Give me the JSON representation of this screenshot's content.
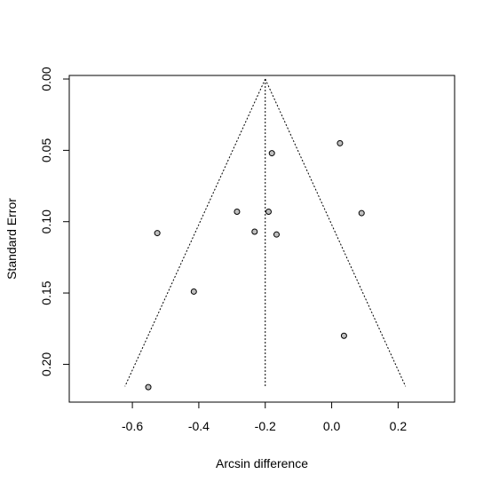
{
  "chart_data": {
    "type": "scatter",
    "subtype": "funnel",
    "title": "",
    "xlabel": "Arcsin difference",
    "ylabel": "Standard Error",
    "xlim": [
      -0.79,
      0.37
    ],
    "ylim": [
      0.2265,
      -0.0025
    ],
    "y_reversed": true,
    "grid": false,
    "x_ticks": [
      -0.6,
      -0.4,
      -0.2,
      0.0,
      0.2
    ],
    "x_tick_labels": [
      "-0.6",
      "-0.4",
      "-0.2",
      "0.0",
      "0.2"
    ],
    "y_ticks": [
      0.0,
      0.05,
      0.1,
      0.15,
      0.2
    ],
    "y_tick_labels": [
      "0.00",
      "0.05",
      "0.10",
      "0.15",
      "0.20"
    ],
    "center_line_x": -0.2,
    "funnel_multiplier": 1.96,
    "funnel_se_range": [
      0.0,
      0.2155
    ],
    "point_fill": "#bfbfbf",
    "points": [
      {
        "x": 0.025,
        "y": 0.045
      },
      {
        "x": -0.18,
        "y": 0.052
      },
      {
        "x": -0.285,
        "y": 0.093
      },
      {
        "x": -0.19,
        "y": 0.093
      },
      {
        "x": 0.09,
        "y": 0.094
      },
      {
        "x": -0.525,
        "y": 0.108
      },
      {
        "x": -0.232,
        "y": 0.107
      },
      {
        "x": -0.166,
        "y": 0.109
      },
      {
        "x": -0.415,
        "y": 0.149
      },
      {
        "x": 0.037,
        "y": 0.18
      },
      {
        "x": -0.552,
        "y": 0.216
      }
    ]
  }
}
